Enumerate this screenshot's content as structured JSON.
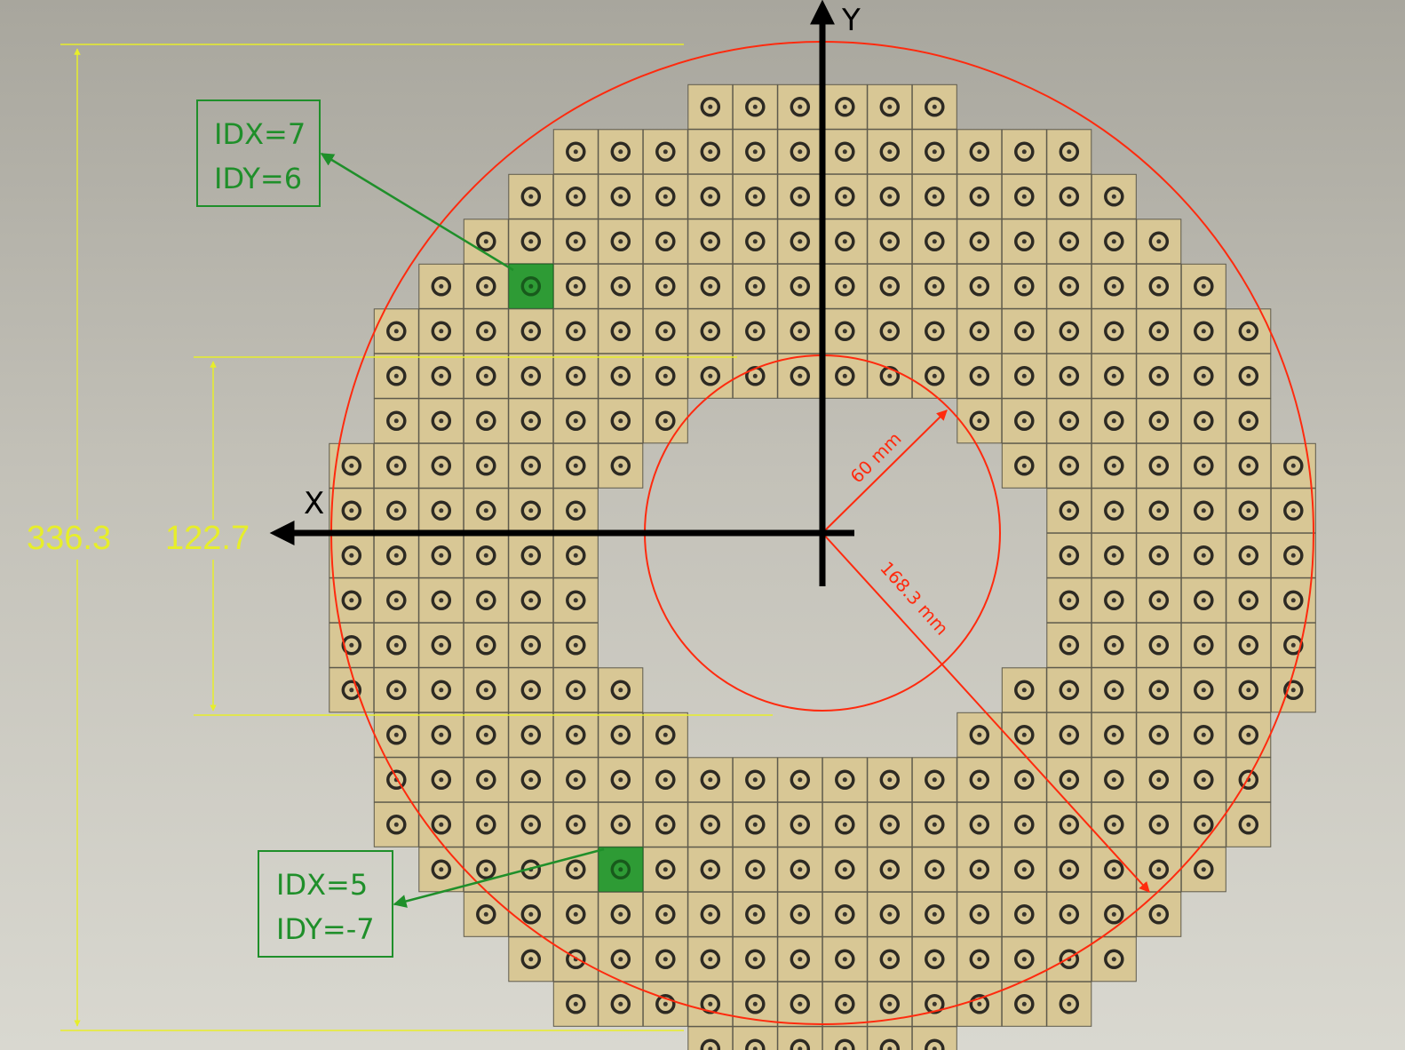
{
  "dimensions": {
    "outer_height": "336.3",
    "inner_height": "122.7"
  },
  "axes": {
    "x_label": "X",
    "y_label": "Y"
  },
  "radii": {
    "inner": "60 mm",
    "outer": "168.3 mm"
  },
  "callouts": [
    {
      "idx": "IDX=7",
      "idy": "IDY=6"
    },
    {
      "idx": "IDX=5",
      "idy": "IDY=-7"
    }
  ],
  "grid": {
    "rows": [
      {
        "idy": 10,
        "idx_from": -2,
        "idx_to": 3
      },
      {
        "idy": 9,
        "idx_from": -5,
        "idx_to": 6
      },
      {
        "idy": 8,
        "idx_from": -6,
        "idx_to": 7
      },
      {
        "idy": 7,
        "idx_from": -7,
        "idx_to": 8
      },
      {
        "idy": 6,
        "idx_from": -8,
        "idx_to": 9
      },
      {
        "idy": 5,
        "idx_from": -9,
        "idx_to": 10
      },
      {
        "idy": 4,
        "idx_from": -9,
        "idx_to": 10
      },
      {
        "idy": 3,
        "idx_from": -9,
        "idx_to": 10,
        "gap": [
          -2,
          3
        ]
      },
      {
        "idy": 2,
        "idx_from": -10,
        "idx_to": 11,
        "gap": [
          -3,
          4
        ]
      },
      {
        "idy": 1,
        "idx_from": -10,
        "idx_to": 11,
        "gap": [
          -4,
          5
        ]
      },
      {
        "idy": 0,
        "idx_from": -10,
        "idx_to": 11,
        "gap": [
          -4,
          5
        ]
      },
      {
        "idy": -1,
        "idx_from": -10,
        "idx_to": 11,
        "gap": [
          -4,
          5
        ]
      },
      {
        "idy": -2,
        "idx_from": -10,
        "idx_to": 11,
        "gap": [
          -4,
          5
        ]
      },
      {
        "idy": -3,
        "idx_from": -10,
        "idx_to": 11,
        "gap": [
          -3,
          4
        ]
      },
      {
        "idy": -4,
        "idx_from": -9,
        "idx_to": 10,
        "gap": [
          -2,
          3
        ]
      },
      {
        "idy": -5,
        "idx_from": -9,
        "idx_to": 10
      },
      {
        "idy": -6,
        "idx_from": -9,
        "idx_to": 10
      },
      {
        "idy": -7,
        "idx_from": -8,
        "idx_to": 9
      },
      {
        "idy": -8,
        "idx_from": -7,
        "idx_to": 8
      },
      {
        "idy": -9,
        "idx_from": -6,
        "idx_to": 7
      },
      {
        "idy": -10,
        "idx_from": -5,
        "idx_to": 6
      },
      {
        "idy": -11,
        "idx_from": -2,
        "idx_to": 3
      }
    ],
    "highlighted": [
      {
        "idx": 7,
        "idy": 6
      },
      {
        "idx": 5,
        "idy": -7
      }
    ]
  },
  "colors": {
    "tile": "#d8c795",
    "highlight": "#2e9b35",
    "dimension": "#e7ee2a",
    "radius": "#ff2a0e",
    "callout": "#1f8f2a"
  }
}
